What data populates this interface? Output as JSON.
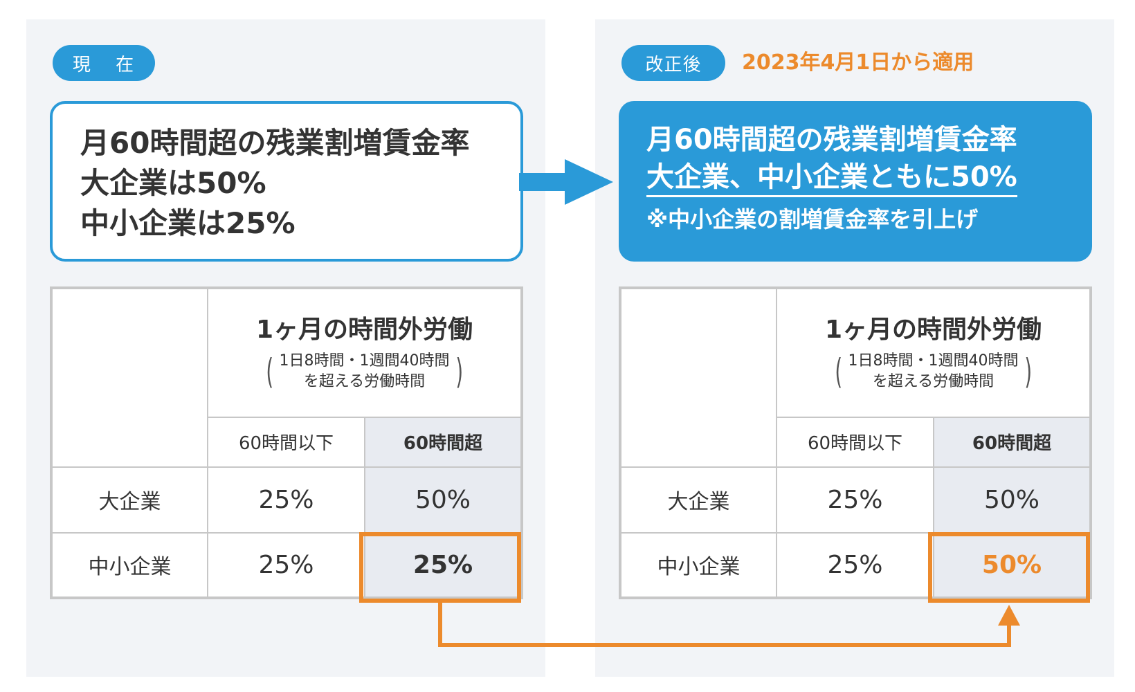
{
  "left": {
    "tag": "現 在",
    "summary": [
      "月60時間超の残業割増賃金率",
      "大企業は50%",
      "中小企業は25%"
    ],
    "table": {
      "header_title": "1ヶ月の時間外労働",
      "header_sub_line1": "1日8時間・1週間40時間",
      "header_sub_line2": "を超える労働時間",
      "col_le60": "60時間以下",
      "col_gt60": "60時間超",
      "rows": [
        {
          "label": "大企業",
          "le60": "25%",
          "gt60": "50%"
        },
        {
          "label": "中小企業",
          "le60": "25%",
          "gt60": "25%"
        }
      ]
    }
  },
  "right": {
    "tag": "改正後",
    "effective": "2023年4月1日から適用",
    "summary_line1": "月60時間超の残業割増賃金率",
    "summary_line2": "大企業、中小企業ともに50%",
    "summary_note": "※中小企業の割増賃金率を引上げ",
    "table": {
      "header_title": "1ヶ月の時間外労働",
      "header_sub_line1": "1日8時間・1週間40時間",
      "header_sub_line2": "を超える労働時間",
      "col_le60": "60時間以下",
      "col_gt60": "60時間超",
      "rows": [
        {
          "label": "大企業",
          "le60": "25%",
          "gt60": "50%"
        },
        {
          "label": "中小企業",
          "le60": "25%",
          "gt60": "50%"
        }
      ]
    }
  },
  "colors": {
    "blue": "#2a9ad8",
    "orange": "#ec8a2c",
    "panel_bg": "#f2f4f7",
    "highlight_cell": "#e8ebf1"
  }
}
